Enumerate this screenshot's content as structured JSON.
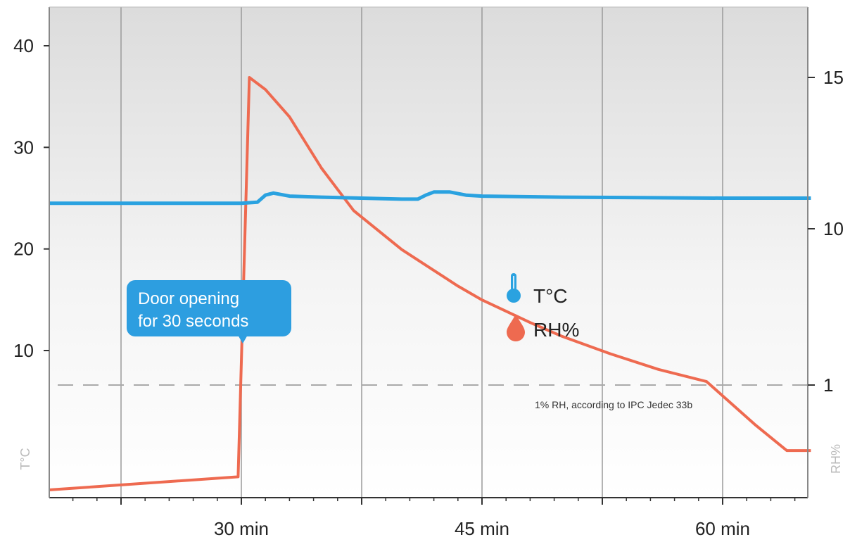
{
  "chart_data": {
    "type": "line",
    "title": "",
    "xlabel": "",
    "ylabel_left": "T°C",
    "ylabel_right": "RH%",
    "x_unit": "min",
    "x_range": [
      18,
      65.5
    ],
    "x_major_ticks": [
      22.5,
      30,
      37.5,
      45,
      52.5,
      60
    ],
    "x_tick_labels": [
      {
        "x": 30,
        "label": "30 min"
      },
      {
        "x": 45,
        "label": "45 min"
      },
      {
        "x": 60,
        "label": "60 min"
      }
    ],
    "y_left": {
      "ticks": [
        10,
        20,
        30,
        40
      ],
      "tick_labels": [
        "10",
        "20",
        "30",
        "40"
      ]
    },
    "y_right": {
      "ticks": [
        1,
        10,
        15
      ],
      "tick_labels": [
        "1",
        "10",
        "15"
      ]
    },
    "grid": "vertical",
    "series": [
      {
        "name": "T°C",
        "axis": "left",
        "color": "#2aa2e0",
        "points": [
          [
            18,
            24.5
          ],
          [
            30,
            24.5
          ],
          [
            31,
            24.6
          ],
          [
            31.5,
            25.3
          ],
          [
            32,
            25.5
          ],
          [
            33,
            25.2
          ],
          [
            35,
            25.1
          ],
          [
            40,
            24.9
          ],
          [
            41,
            24.9
          ],
          [
            41.5,
            25.3
          ],
          [
            42,
            25.6
          ],
          [
            43,
            25.6
          ],
          [
            44,
            25.3
          ],
          [
            45,
            25.2
          ],
          [
            50,
            25.1
          ],
          [
            60,
            25.0
          ],
          [
            65.5,
            25.0
          ]
        ]
      },
      {
        "name": "RH%",
        "axis": "right",
        "color": "#ee6a50",
        "points": [
          [
            18,
            0.2
          ],
          [
            29.8,
            0.3
          ],
          [
            30.5,
            15.0
          ],
          [
            31.5,
            14.6
          ],
          [
            33,
            13.7
          ],
          [
            35,
            12.0
          ],
          [
            37,
            10.6
          ],
          [
            40,
            8.8
          ],
          [
            42,
            7.6
          ],
          [
            43.5,
            6.7
          ],
          [
            45,
            5.9
          ],
          [
            48,
            4.6
          ],
          [
            50,
            3.8
          ],
          [
            53,
            2.8
          ],
          [
            56,
            1.9
          ],
          [
            59,
            1.2
          ],
          [
            62,
            0.7
          ],
          [
            64,
            0.5
          ],
          [
            65.5,
            0.5
          ]
        ]
      }
    ],
    "threshold": {
      "axis": "right",
      "value": 1,
      "label": "1% RH, according to IPC Jedec 33b"
    },
    "annotation": {
      "lines": [
        "Door opening",
        "for 30 seconds"
      ],
      "x": 30
    },
    "legend": {
      "placement": "center-right",
      "items": [
        {
          "label": "T°C",
          "icon": "thermometer-icon"
        },
        {
          "label": "RH%",
          "icon": "droplet-icon"
        }
      ]
    }
  }
}
